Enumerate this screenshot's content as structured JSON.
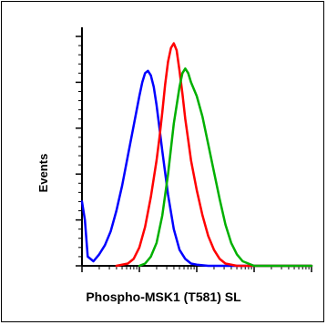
{
  "chart_data": {
    "type": "line",
    "xlabel": "Phospho-MSK1 (T581) SL",
    "ylabel": "Events",
    "x_scale": "log",
    "xlim": [
      0,
      4
    ],
    "ylim": [
      0,
      1
    ],
    "grid": false,
    "legend": "none",
    "series": [
      {
        "color": "#0000ff",
        "x": [
          0.0,
          0.05,
          0.1,
          0.2,
          0.3,
          0.4,
          0.5,
          0.6,
          0.7,
          0.8,
          0.9,
          1.0,
          1.05,
          1.1,
          1.15,
          1.2,
          1.25,
          1.3,
          1.35,
          1.4,
          1.5,
          1.6,
          1.7,
          1.8,
          1.9,
          2.0,
          2.2,
          4.0
        ],
        "y": [
          0.28,
          0.2,
          0.04,
          0.02,
          0.05,
          0.09,
          0.15,
          0.24,
          0.35,
          0.48,
          0.61,
          0.74,
          0.8,
          0.84,
          0.85,
          0.83,
          0.78,
          0.7,
          0.6,
          0.5,
          0.31,
          0.16,
          0.07,
          0.03,
          0.01,
          0.005,
          0.0,
          0.0
        ]
      },
      {
        "color": "#ff0000",
        "x": [
          0.6,
          0.8,
          0.9,
          1.0,
          1.1,
          1.2,
          1.3,
          1.35,
          1.4,
          1.45,
          1.5,
          1.55,
          1.6,
          1.65,
          1.7,
          1.75,
          1.8,
          1.85,
          1.9,
          2.0,
          2.1,
          2.2,
          2.3,
          2.4,
          2.5,
          2.6,
          2.7,
          2.8,
          4.0
        ],
        "y": [
          0.0,
          0.01,
          0.03,
          0.08,
          0.17,
          0.3,
          0.46,
          0.56,
          0.67,
          0.79,
          0.89,
          0.95,
          0.97,
          0.94,
          0.85,
          0.75,
          0.64,
          0.55,
          0.46,
          0.33,
          0.22,
          0.13,
          0.07,
          0.03,
          0.01,
          0.005,
          0.0,
          0.0,
          0.0
        ]
      },
      {
        "color": "#00b000",
        "x": [
          1.0,
          1.1,
          1.2,
          1.3,
          1.4,
          1.5,
          1.6,
          1.7,
          1.75,
          1.8,
          1.85,
          1.9,
          2.0,
          2.1,
          2.2,
          2.3,
          2.4,
          2.5,
          2.6,
          2.7,
          2.8,
          2.9,
          3.0,
          3.1,
          4.0
        ],
        "y": [
          0.0,
          0.01,
          0.04,
          0.1,
          0.22,
          0.4,
          0.62,
          0.78,
          0.84,
          0.86,
          0.84,
          0.8,
          0.74,
          0.65,
          0.53,
          0.41,
          0.29,
          0.18,
          0.1,
          0.05,
          0.02,
          0.01,
          0.0,
          0.0,
          0.0
        ]
      }
    ]
  }
}
